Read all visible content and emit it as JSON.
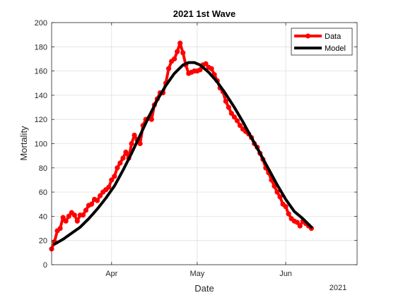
{
  "chart_data": {
    "type": "line",
    "title": "2021 1st Wave",
    "xlabel": "Date",
    "ylabel": "Mortality",
    "year_label": "2021",
    "ylim": [
      0,
      200
    ],
    "xlim": [
      "2021-03-11",
      "2021-06-26"
    ],
    "y_ticks": [
      0,
      20,
      40,
      60,
      80,
      100,
      120,
      140,
      160,
      180,
      200
    ],
    "x_ticks": [
      {
        "date": "2021-04-01",
        "label": "Apr"
      },
      {
        "date": "2021-05-01",
        "label": "May"
      },
      {
        "date": "2021-06-01",
        "label": "Jun"
      }
    ],
    "grid": true,
    "legend": {
      "position": "top-right",
      "entries": [
        "Data",
        "Model"
      ]
    },
    "colors": {
      "data": "#ff0000",
      "model": "#000000"
    },
    "series": [
      {
        "name": "Data",
        "marker": "circle",
        "x": [
          "2021-03-11",
          "2021-03-12",
          "2021-03-13",
          "2021-03-14",
          "2021-03-15",
          "2021-03-16",
          "2021-03-17",
          "2021-03-18",
          "2021-03-19",
          "2021-03-20",
          "2021-03-21",
          "2021-03-22",
          "2021-03-23",
          "2021-03-24",
          "2021-03-25",
          "2021-03-26",
          "2021-03-27",
          "2021-03-28",
          "2021-03-29",
          "2021-03-30",
          "2021-03-31",
          "2021-04-01",
          "2021-04-02",
          "2021-04-03",
          "2021-04-04",
          "2021-04-05",
          "2021-04-06",
          "2021-04-07",
          "2021-04-08",
          "2021-04-09",
          "2021-04-10",
          "2021-04-11",
          "2021-04-12",
          "2021-04-13",
          "2021-04-14",
          "2021-04-15",
          "2021-04-16",
          "2021-04-17",
          "2021-04-18",
          "2021-04-19",
          "2021-04-20",
          "2021-04-21",
          "2021-04-22",
          "2021-04-23",
          "2021-04-24",
          "2021-04-25",
          "2021-04-26",
          "2021-04-27",
          "2021-04-28",
          "2021-04-29",
          "2021-04-30",
          "2021-05-01",
          "2021-05-02",
          "2021-05-03",
          "2021-05-04",
          "2021-05-05",
          "2021-05-06",
          "2021-05-07",
          "2021-05-08",
          "2021-05-09",
          "2021-05-10",
          "2021-05-11",
          "2021-05-12",
          "2021-05-13",
          "2021-05-14",
          "2021-05-15",
          "2021-05-16",
          "2021-05-17",
          "2021-05-18",
          "2021-05-19",
          "2021-05-20",
          "2021-05-21",
          "2021-05-22",
          "2021-05-23",
          "2021-05-24",
          "2021-05-25",
          "2021-05-26",
          "2021-05-27",
          "2021-05-28",
          "2021-05-29",
          "2021-05-30",
          "2021-05-31",
          "2021-06-01",
          "2021-06-02",
          "2021-06-03",
          "2021-06-04",
          "2021-06-05",
          "2021-06-06",
          "2021-06-07",
          "2021-06-08",
          "2021-06-09",
          "2021-06-10"
        ],
        "y": [
          13,
          19,
          28,
          30,
          39,
          36,
          40,
          43,
          41,
          36,
          41,
          41,
          45,
          49,
          50,
          54,
          53,
          57,
          60,
          62,
          64,
          70,
          73,
          80,
          84,
          88,
          93,
          88,
          100,
          107,
          103,
          100,
          115,
          120,
          121,
          120,
          132,
          137,
          142,
          142,
          150,
          162,
          168,
          170,
          176,
          183,
          175,
          165,
          158,
          159,
          160,
          160,
          161,
          165,
          166,
          163,
          162,
          157,
          152,
          146,
          143,
          135,
          130,
          125,
          122,
          119,
          115,
          112,
          110,
          108,
          105,
          100,
          97,
          92,
          87,
          80,
          76,
          70,
          65,
          60,
          56,
          50,
          48,
          42,
          38,
          36,
          35,
          32,
          36,
          34,
          32,
          30
        ]
      },
      {
        "name": "Model",
        "x": [
          "2021-03-12",
          "2021-03-15",
          "2021-03-18",
          "2021-03-21",
          "2021-03-24",
          "2021-03-27",
          "2021-03-30",
          "2021-04-02",
          "2021-04-05",
          "2021-04-08",
          "2021-04-11",
          "2021-04-14",
          "2021-04-17",
          "2021-04-20",
          "2021-04-23",
          "2021-04-26",
          "2021-04-28",
          "2021-04-30",
          "2021-05-02",
          "2021-05-05",
          "2021-05-08",
          "2021-05-11",
          "2021-05-14",
          "2021-05-17",
          "2021-05-20",
          "2021-05-23",
          "2021-05-26",
          "2021-05-29",
          "2021-06-01",
          "2021-06-04",
          "2021-06-07",
          "2021-06-10"
        ],
        "y": [
          17,
          21,
          26,
          31,
          38,
          46,
          55,
          65,
          78,
          92,
          107,
          122,
          136,
          148,
          158,
          165,
          167,
          167,
          165,
          159,
          151,
          141,
          130,
          118,
          105,
          92,
          79,
          66,
          54,
          44,
          38,
          31
        ]
      }
    ]
  }
}
